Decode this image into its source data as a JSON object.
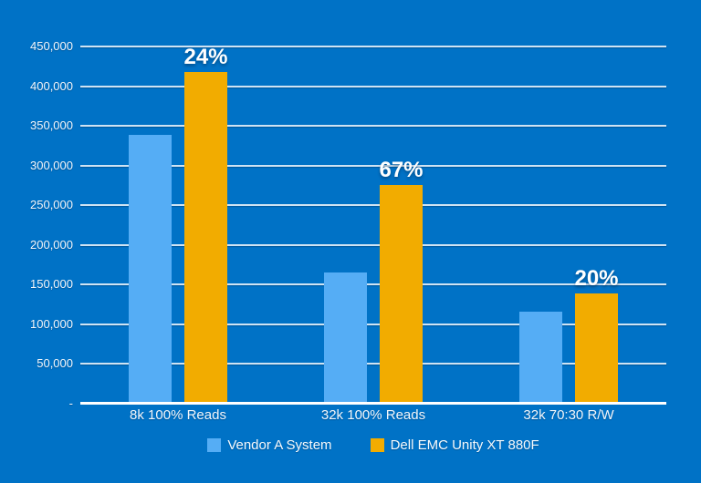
{
  "page": {
    "background_color": "#0072C6"
  },
  "chart_data": {
    "type": "bar",
    "title": "",
    "categories": [
      "8k 100% Reads",
      "32k 100% Reads",
      "32k 70:30 R/W"
    ],
    "series": [
      {
        "name": "Vendor A System",
        "color": "#55ADF5",
        "values": [
          337000,
          164000,
          115000
        ]
      },
      {
        "name": "Dell EMC Unity XT 880F",
        "color": "#F2AC00",
        "values": [
          417000,
          274000,
          138000
        ],
        "bar_labels": [
          "24%",
          "67%",
          "20%"
        ]
      }
    ],
    "ylim": [
      0,
      450000
    ],
    "ytick_step": 50000,
    "ytick_labels": [
      "450,000",
      "400,000",
      "350,000",
      "300,000",
      "250,000",
      "200,000",
      "150,000",
      "100,000",
      "50,000",
      "-"
    ],
    "grid": true,
    "legend_position": "bottom",
    "colors": {
      "background": "#0072C6",
      "gridline": "#CFE3F3",
      "axis_line": "#FFFFFF",
      "text": "#FFFFFF"
    }
  }
}
